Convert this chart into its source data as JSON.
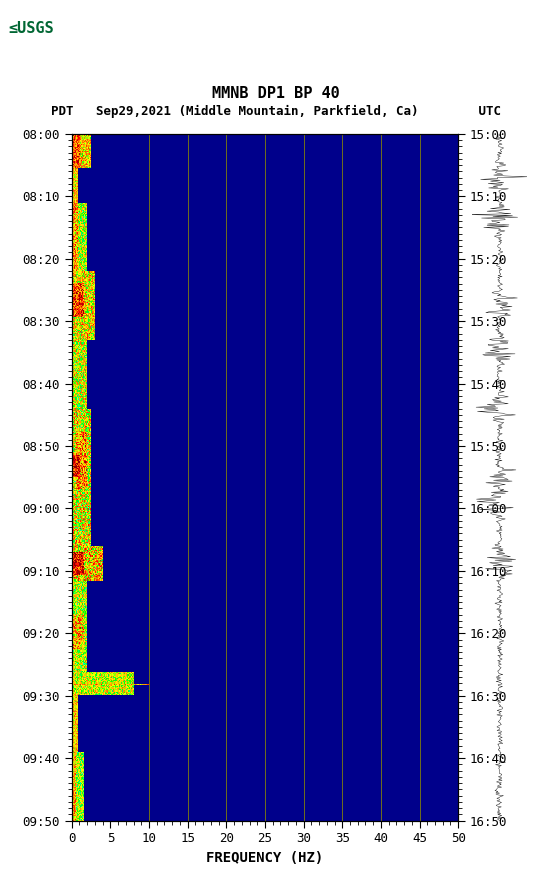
{
  "title_line1": "MMNB DP1 BP 40",
  "title_line2": "PDT   Sep29,2021 (Middle Mountain, Parkfield, Ca)        UTC",
  "xlabel": "FREQUENCY (HZ)",
  "freq_min": 0,
  "freq_max": 50,
  "freq_ticks": [
    0,
    5,
    10,
    15,
    20,
    25,
    30,
    35,
    40,
    45,
    50
  ],
  "time_labels_left": [
    "08:00",
    "08:10",
    "08:20",
    "08:30",
    "08:40",
    "08:50",
    "09:00",
    "09:10",
    "09:20",
    "09:30",
    "09:40",
    "09:50"
  ],
  "time_labels_right": [
    "15:00",
    "15:10",
    "15:20",
    "15:30",
    "15:40",
    "15:50",
    "16:00",
    "16:10",
    "16:20",
    "16:30",
    "16:40",
    "16:50"
  ],
  "n_time_steps": 600,
  "n_freq_steps": 500,
  "background_color": "#ffffff",
  "spectrogram_bg": "#00008B",
  "vertical_line_color": "#8B8B00",
  "vertical_line_freqs": [
    10,
    15,
    20,
    25,
    30,
    35,
    40,
    45
  ],
  "waveform_color": "#000000",
  "usgs_color": "#006633"
}
